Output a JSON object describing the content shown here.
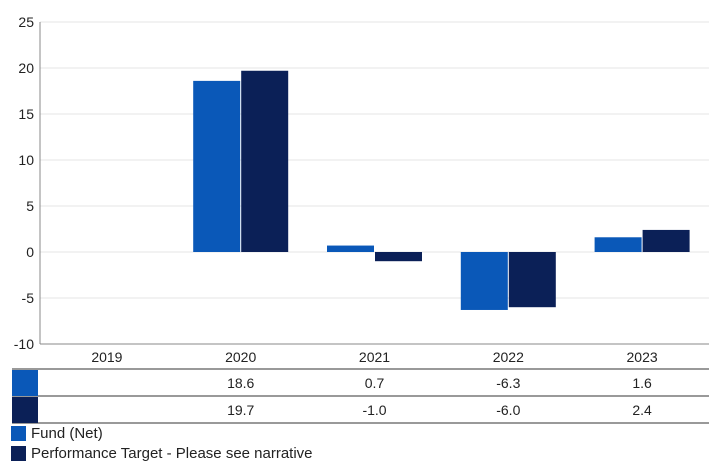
{
  "colors": {
    "fund": "#0a58b8",
    "target": "#0b2057",
    "grid": "#e6e6e6",
    "axis": "#888888"
  },
  "chart_data": {
    "type": "bar",
    "title": "",
    "xlabel": "",
    "ylabel": "",
    "categories": [
      "2019",
      "2020",
      "2021",
      "2022",
      "2023"
    ],
    "ylim": [
      -10,
      25
    ],
    "yticks": [
      25,
      20,
      15,
      10,
      5,
      0,
      -5,
      -10
    ],
    "grid": true,
    "legend_position": "bottom-left",
    "series": [
      {
        "name": "Fund (Net)",
        "color": "#0a58b8",
        "values": [
          null,
          18.6,
          0.7,
          -6.3,
          1.6
        ],
        "labels": [
          "",
          "18.6",
          "0.7",
          "-6.3",
          "1.6"
        ]
      },
      {
        "name": "Performance Target - Please see narrative",
        "color": "#0b2057",
        "values": [
          null,
          19.7,
          -1.0,
          -6.0,
          2.4
        ],
        "labels": [
          "",
          "19.7",
          "-1.0",
          "-6.0",
          "2.4"
        ]
      }
    ]
  }
}
